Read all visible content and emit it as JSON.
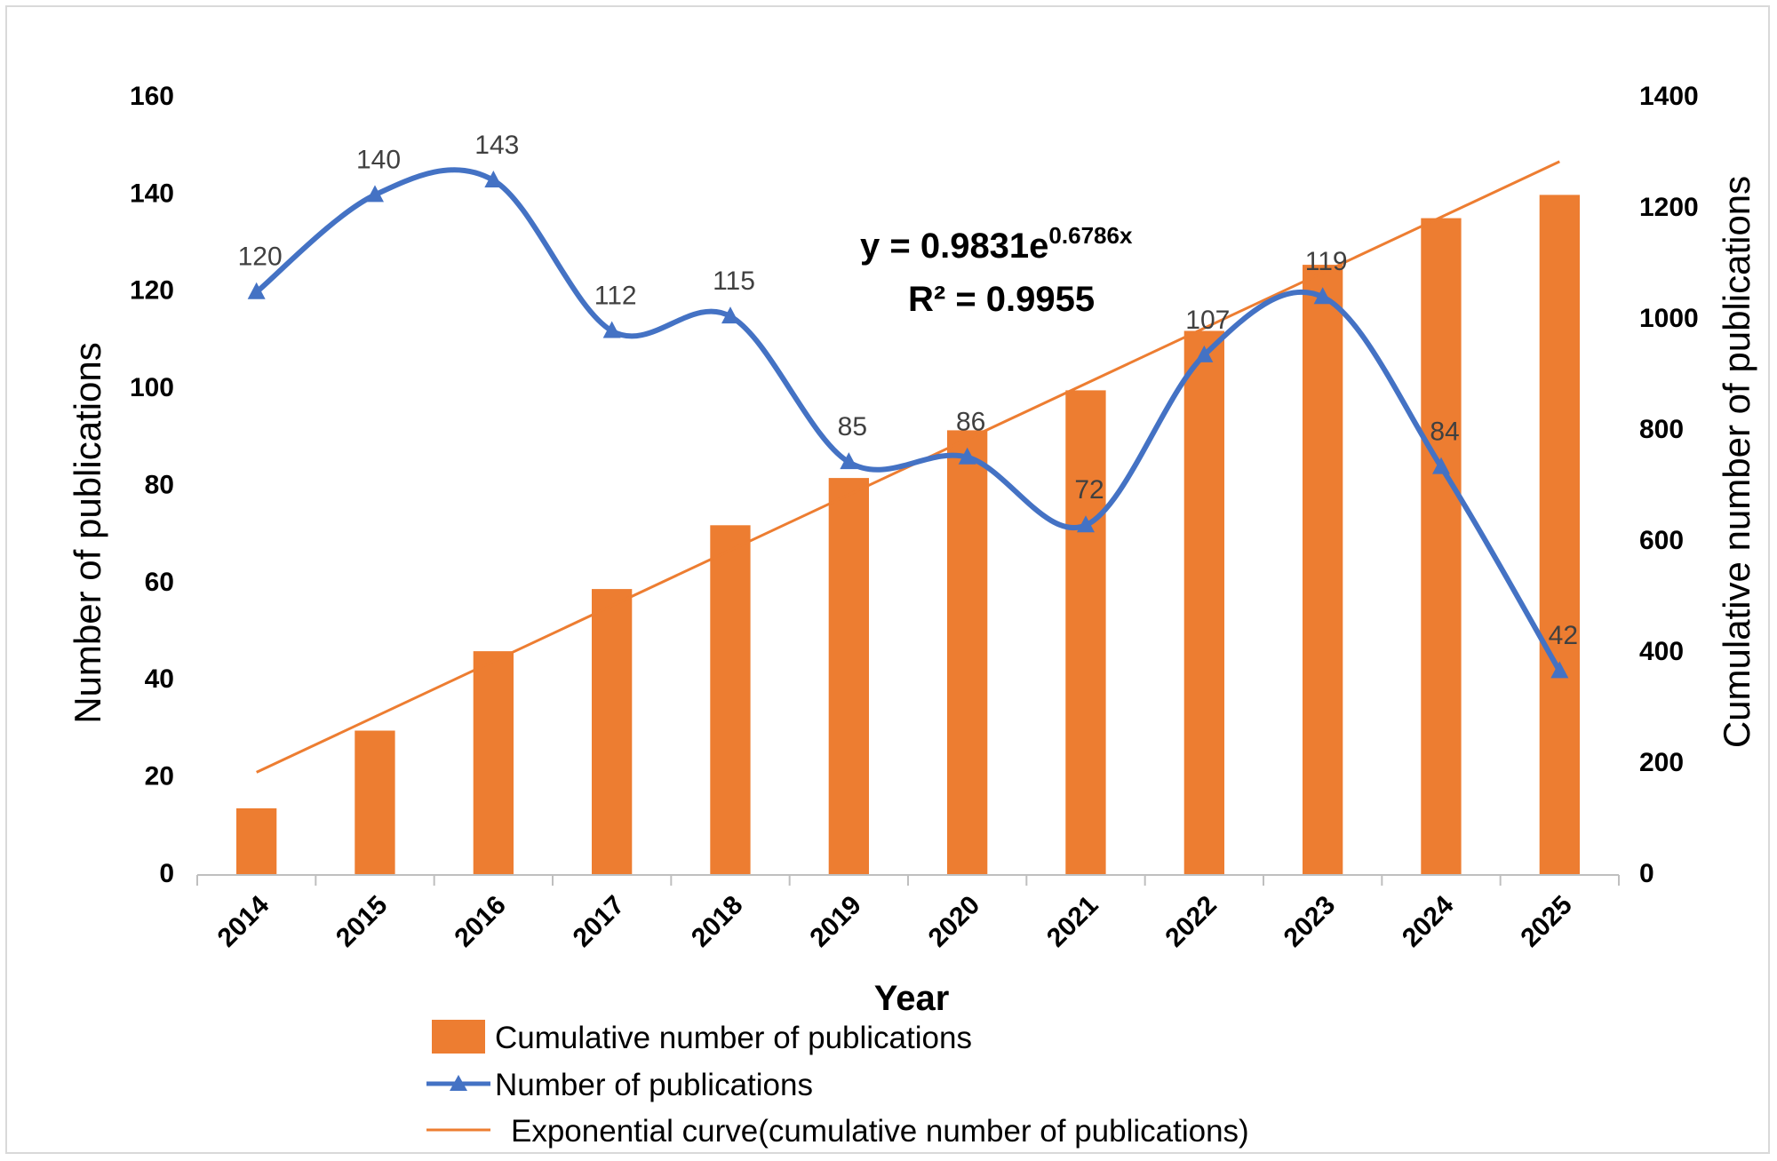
{
  "chart_data": {
    "type": "bar+line",
    "categories": [
      "2014",
      "2015",
      "2016",
      "2017",
      "2018",
      "2019",
      "2020",
      "2021",
      "2022",
      "2023",
      "2024",
      "2025"
    ],
    "series": [
      {
        "name": "Cumulative number of publications",
        "type": "bar",
        "axis": "right",
        "color": "#ED7D31",
        "values": [
          120,
          260,
          403,
          515,
          630,
          715,
          801,
          873,
          980,
          1099,
          1183,
          1225
        ]
      },
      {
        "name": "Number of publications",
        "type": "line",
        "axis": "left",
        "marker": "triangle",
        "color": "#4472C4",
        "values": [
          120,
          140,
          143,
          112,
          115,
          85,
          86,
          72,
          107,
          119,
          84,
          42
        ],
        "data_labels": [
          "120",
          "140",
          "143",
          "112",
          "115",
          "85",
          "86",
          "72",
          "107",
          "119",
          "84",
          "42"
        ]
      },
      {
        "name": "Exponential curve(cumulative number of publications)",
        "type": "trendline",
        "axis": "right",
        "color": "#ED7D31",
        "start_value": 185,
        "end_value": 1285
      }
    ],
    "xlabel": "Year",
    "ylabel": "Number of publications",
    "y2label": "Cumulative number of publications",
    "ylim": [
      0,
      160
    ],
    "y2lim": [
      0,
      1400
    ],
    "yticks": [
      "0",
      "20",
      "40",
      "60",
      "80",
      "100",
      "120",
      "140",
      "160"
    ],
    "y2ticks": [
      "0",
      "200",
      "400",
      "600",
      "800",
      "1000",
      "1200",
      "1400"
    ],
    "equation": {
      "prefix": "y = 0.9831e",
      "exponent": "0.6786x",
      "r_label": "R² = 0.9955"
    },
    "legend": [
      "Cumulative number of publications",
      "Number of publications",
      "Exponential curve(cumulative number of publications)"
    ],
    "grid": false
  }
}
